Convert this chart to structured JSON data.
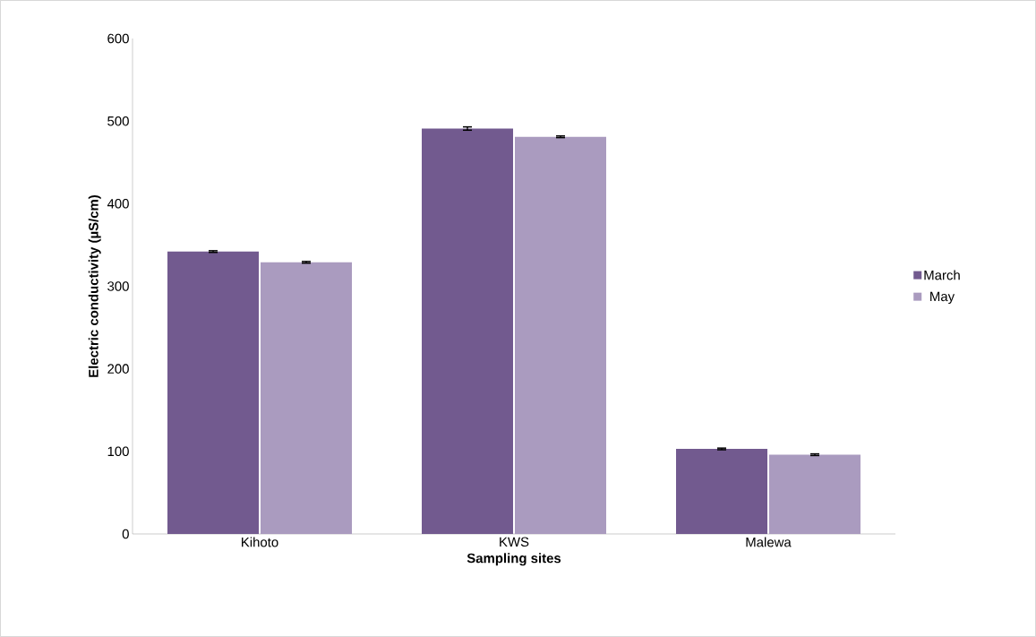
{
  "chart_data": {
    "type": "bar",
    "xlabel": "Sampling sites",
    "ylabel": "Electric conductivity (µS/cm)",
    "categories": [
      "Kihoto",
      "KWS",
      "Malewa"
    ],
    "series": [
      {
        "name": "March",
        "color": "#725a8f",
        "values": [
          342,
          491,
          103
        ],
        "errors": [
          1,
          2,
          1
        ]
      },
      {
        "name": "May",
        "color": "#aa9bbf",
        "values": [
          329,
          481,
          96
        ],
        "errors": [
          1,
          1,
          1
        ]
      }
    ],
    "ylim": [
      0,
      600
    ],
    "yticks": [
      0,
      100,
      200,
      300,
      400,
      500,
      600
    ],
    "grid": false,
    "legend": "right"
  }
}
